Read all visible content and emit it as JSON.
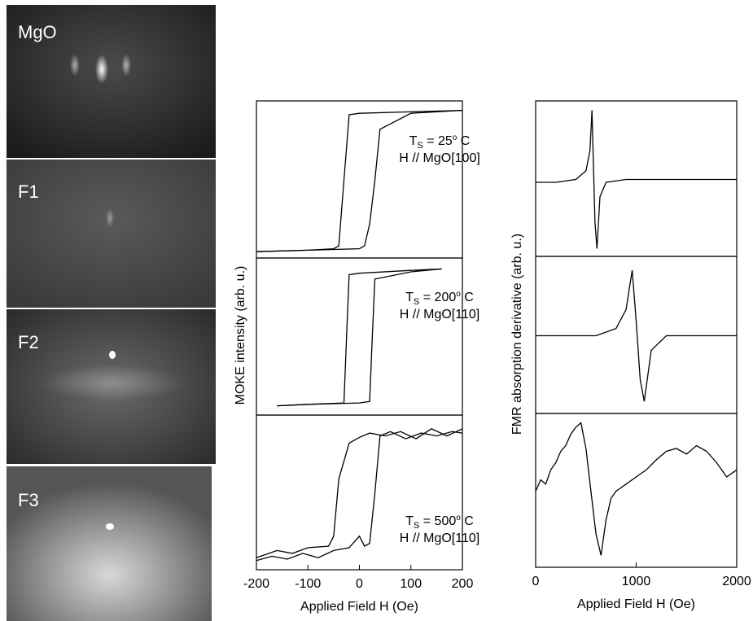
{
  "rheed_images": [
    {
      "label": "MgO"
    },
    {
      "label": "F1"
    },
    {
      "label": "F2"
    },
    {
      "label": "F3"
    }
  ],
  "chart_data": [
    {
      "type": "line",
      "xlabel": "Applied Field H (Oe)",
      "ylabel": "MOKE intensity (arb. u.)",
      "xlim": [
        -200,
        200
      ],
      "xticks": [
        -200,
        -100,
        0,
        100,
        200
      ],
      "panels": [
        {
          "ylim": [
            0,
            1
          ],
          "annotation": {
            "symbol": "T",
            "subscript": "S",
            "value_text": "= 25",
            "superscript": "o",
            "unit": "C",
            "line2": "H // MgO[100]"
          },
          "series": [
            {
              "color": "#000000",
              "x": [
                200,
                100,
                0,
                -20,
                -30,
                -40,
                -50,
                -100,
                -200
              ],
              "values": [
                0.98,
                0.97,
                0.96,
                0.95,
                0.5,
                0.05,
                0.03,
                0.02,
                0.01
              ]
            },
            {
              "color": "#000000",
              "x": [
                -200,
                -100,
                0,
                10,
                20,
                30,
                40,
                100,
                200
              ],
              "values": [
                0.01,
                0.02,
                0.03,
                0.05,
                0.2,
                0.5,
                0.85,
                0.96,
                0.98
              ]
            }
          ]
        },
        {
          "ylim": [
            0,
            1
          ],
          "annotation": {
            "symbol": "T",
            "subscript": "S",
            "value_text": "= 200",
            "superscript": "o",
            "unit": "C",
            "line2": "H // MgO[110]"
          },
          "series": [
            {
              "color": "#000000",
              "x": [
                160,
                100,
                0,
                -20,
                -25,
                -30,
                -100,
                -160
              ],
              "values": [
                0.97,
                0.96,
                0.94,
                0.93,
                0.5,
                0.05,
                0.04,
                0.03
              ]
            },
            {
              "color": "#000000",
              "x": [
                -160,
                -100,
                0,
                20,
                25,
                30,
                100,
                160
              ],
              "values": [
                0.03,
                0.04,
                0.05,
                0.06,
                0.5,
                0.9,
                0.95,
                0.97
              ]
            }
          ]
        },
        {
          "ylim": [
            0,
            1
          ],
          "annotation": {
            "symbol": "T",
            "subscript": "S",
            "value_text": "= 500",
            "superscript": "o",
            "unit": "C",
            "line2": "H // MgO[110]"
          },
          "series": [
            {
              "color": "#000000",
              "x": [
                200,
                170,
                140,
                110,
                80,
                50,
                20,
                0,
                -20,
                -40,
                -50,
                -60,
                -100,
                -130,
                -160,
                -200
              ],
              "values": [
                0.95,
                0.9,
                0.95,
                0.88,
                0.93,
                0.9,
                0.92,
                0.89,
                0.85,
                0.6,
                0.2,
                0.13,
                0.12,
                0.08,
                0.1,
                0.05
              ]
            },
            {
              "color": "#000000",
              "x": [
                -200,
                -170,
                -140,
                -110,
                -80,
                -50,
                -20,
                0,
                10,
                20,
                30,
                40,
                60,
                90,
                120,
                150,
                180,
                200
              ],
              "values": [
                0.03,
                0.06,
                0.04,
                0.08,
                0.05,
                0.1,
                0.12,
                0.2,
                0.13,
                0.15,
                0.5,
                0.9,
                0.93,
                0.88,
                0.92,
                0.9,
                0.93,
                0.92
              ]
            }
          ]
        }
      ]
    },
    {
      "type": "line",
      "xlabel": "Applied Field H (Oe)",
      "ylabel": "FMR absorption derivative (arb. u.)",
      "xlim": [
        0,
        2000
      ],
      "xticks": [
        0,
        1000,
        2000
      ],
      "panels": [
        {
          "ylim": [
            0,
            1
          ],
          "series": [
            {
              "color": "#000000",
              "x": [
                0,
                200,
                400,
                500,
                540,
                560,
                575,
                590,
                610,
                640,
                700,
                900,
                1200,
                1500,
                2000
              ],
              "values": [
                0.48,
                0.48,
                0.5,
                0.56,
                0.7,
                0.98,
                0.6,
                0.2,
                0.02,
                0.38,
                0.48,
                0.5,
                0.5,
                0.5,
                0.5
              ]
            }
          ]
        },
        {
          "ylim": [
            0,
            1
          ],
          "series": [
            {
              "color": "#000000",
              "x": [
                0,
                300,
                600,
                800,
                900,
                960,
                1000,
                1040,
                1080,
                1150,
                1300,
                1600,
                2000
              ],
              "values": [
                0.5,
                0.5,
                0.5,
                0.55,
                0.68,
                0.95,
                0.6,
                0.2,
                0.05,
                0.4,
                0.5,
                0.5,
                0.5
              ]
            }
          ]
        },
        {
          "ylim": [
            0,
            1
          ],
          "series": [
            {
              "color": "#000000",
              "x": [
                0,
                50,
                100,
                150,
                200,
                250,
                300,
                350,
                400,
                450,
                500,
                550,
                600,
                650,
                700,
                750,
                800,
                900,
                1000,
                1100,
                1200,
                1300,
                1400,
                1500,
                1600,
                1700,
                1800,
                1900,
                2000
              ],
              "values": [
                0.5,
                0.58,
                0.55,
                0.65,
                0.7,
                0.78,
                0.82,
                0.9,
                0.95,
                0.98,
                0.8,
                0.5,
                0.2,
                0.05,
                0.3,
                0.45,
                0.5,
                0.55,
                0.6,
                0.65,
                0.72,
                0.78,
                0.8,
                0.76,
                0.82,
                0.78,
                0.7,
                0.6,
                0.65
              ]
            }
          ]
        }
      ]
    }
  ]
}
